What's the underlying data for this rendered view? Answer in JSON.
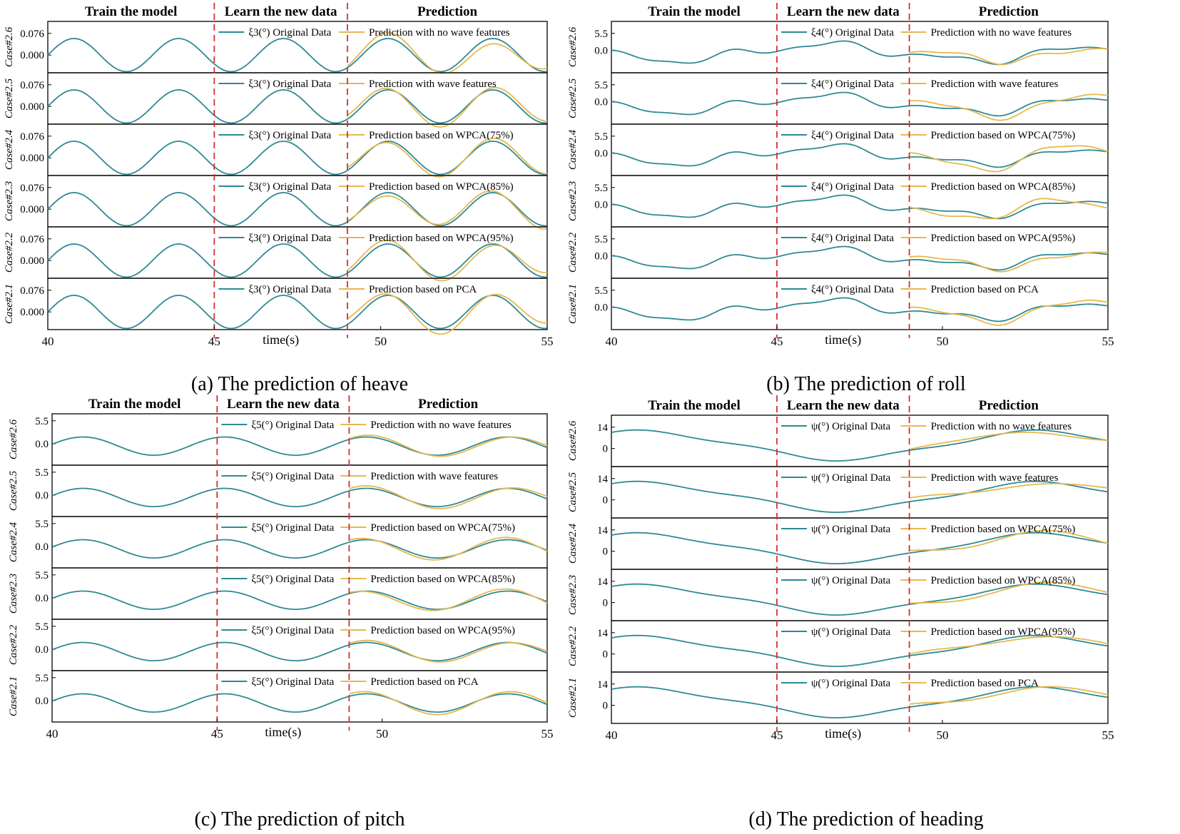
{
  "colors": {
    "original": "#2d8a94",
    "prediction": "#e6b84f",
    "divider": "#d62f2f",
    "frame": "#000000"
  },
  "labels": {
    "phases": [
      "Train the model",
      "Learn the new data",
      "Prediction"
    ],
    "xlabel": "time(s)",
    "xticks": [
      "40",
      "45",
      "50",
      "55"
    ]
  },
  "chart_data": [
    {
      "type": "line",
      "id": "heave",
      "caption": "(a) The prediction of heave",
      "original_label": "ξ3(°) Original Data",
      "x_range": [
        40,
        55
      ],
      "ytick_labels": [
        "0.076",
        "0.000"
      ],
      "ytick_values": [
        0.076,
        0.0
      ],
      "ylim": [
        -0.052,
        0.108
      ],
      "phase_boundaries": [
        45,
        49
      ],
      "motion": {
        "mean": 0.0,
        "terms": [
          [
            0.058,
            0.318,
            0.0
          ]
        ]
      },
      "cases": [
        {
          "case": "Case#2.6",
          "prediction_label": "Prediction with no wave features",
          "pred_err": [
            0.02,
            1.1,
            0.3
          ]
        },
        {
          "case": "Case#2.5",
          "prediction_label": "Prediction with wave features",
          "pred_err": [
            0.014,
            1.3,
            1.2
          ]
        },
        {
          "case": "Case#2.4",
          "prediction_label": "Prediction based on WPCA(75%)",
          "pred_err": [
            0.012,
            1.2,
            2.1
          ]
        },
        {
          "case": "Case#2.3",
          "prediction_label": "Prediction based on WPCA(85%)",
          "pred_err": [
            0.012,
            1.4,
            2.8
          ]
        },
        {
          "case": "Case#2.2",
          "prediction_label": "Prediction based on WPCA(95%)",
          "pred_err": [
            0.016,
            1.2,
            0.7
          ]
        },
        {
          "case": "Case#2.1",
          "prediction_label": "Prediction based on PCA",
          "pred_err": [
            0.02,
            1.1,
            1.6
          ]
        }
      ]
    },
    {
      "type": "line",
      "id": "roll",
      "caption": "(b) The prediction of roll",
      "original_label": "ξ4(°) Original Data",
      "x_range": [
        40,
        55
      ],
      "ytick_labels": [
        "5.5",
        "0.0"
      ],
      "ytick_values": [
        5.5,
        0.0
      ],
      "ylim": [
        -6.5,
        8.5
      ],
      "phase_boundaries": [
        45,
        49
      ],
      "motion": {
        "mean": -0.8,
        "terms": [
          [
            -2.5,
            0.11,
            0.3
          ],
          [
            1.2,
            0.31,
            0.8
          ],
          [
            0.6,
            0.55,
            1.6
          ]
        ]
      },
      "cases": [
        {
          "case": "Case#2.6",
          "prediction_label": "Prediction with no wave features",
          "pred_err": [
            1.4,
            1.0,
            0.4
          ]
        },
        {
          "case": "Case#2.5",
          "prediction_label": "Prediction with wave features",
          "pred_err": [
            1.6,
            1.1,
            1.3
          ]
        },
        {
          "case": "Case#2.4",
          "prediction_label": "Prediction based on WPCA(75%)",
          "pred_err": [
            1.8,
            1.2,
            2.2
          ]
        },
        {
          "case": "Case#2.3",
          "prediction_label": "Prediction based on WPCA(85%)",
          "pred_err": [
            1.7,
            1.3,
            2.9
          ]
        },
        {
          "case": "Case#2.2",
          "prediction_label": "Prediction based on WPCA(95%)",
          "pred_err": [
            1.2,
            1.0,
            0.9
          ]
        },
        {
          "case": "Case#2.1",
          "prediction_label": "Prediction based on PCA",
          "pred_err": [
            1.3,
            1.1,
            1.7
          ]
        }
      ]
    },
    {
      "type": "line",
      "id": "pitch",
      "caption": "(c) The prediction of pitch",
      "original_label": "ξ5(°) Original Data",
      "x_range": [
        40,
        55
      ],
      "ytick_labels": [
        "5.5",
        "0.0"
      ],
      "ytick_values": [
        5.5,
        0.0
      ],
      "ylim": [
        -4.5,
        6.5
      ],
      "phase_boundaries": [
        45,
        49
      ],
      "motion": {
        "mean": -0.6,
        "terms": [
          [
            2.2,
            0.233,
            0.2
          ]
        ]
      },
      "cases": [
        {
          "case": "Case#2.6",
          "prediction_label": "Prediction with no wave features",
          "pred_err": [
            0.5,
            1.2,
            0.4
          ]
        },
        {
          "case": "Case#2.5",
          "prediction_label": "Prediction with wave features",
          "pred_err": [
            0.6,
            1.1,
            1.1
          ]
        },
        {
          "case": "Case#2.4",
          "prediction_label": "Prediction based on WPCA(75%)",
          "pred_err": [
            0.6,
            1.3,
            2.0
          ]
        },
        {
          "case": "Case#2.3",
          "prediction_label": "Prediction based on WPCA(85%)",
          "pred_err": [
            0.6,
            1.2,
            2.7
          ]
        },
        {
          "case": "Case#2.2",
          "prediction_label": "Prediction based on WPCA(95%)",
          "pred_err": [
            0.5,
            1.1,
            0.8
          ]
        },
        {
          "case": "Case#2.1",
          "prediction_label": "Prediction based on PCA",
          "pred_err": [
            0.6,
            1.2,
            1.5
          ]
        }
      ]
    },
    {
      "type": "line",
      "id": "heading",
      "caption": "(d) The prediction of heading",
      "original_label": "ψ(°) Original Data",
      "x_range": [
        40,
        55
      ],
      "ytick_labels": [
        "14",
        "0"
      ],
      "ytick_values": [
        14,
        0
      ],
      "ylim": [
        -10,
        20
      ],
      "phase_boundaries": [
        45,
        49
      ],
      "motion": {
        "mean": 2.0,
        "terms": [
          [
            9.0,
            0.083,
            1.1
          ],
          [
            1.2,
            0.25,
            0.5
          ]
        ]
      },
      "cases": [
        {
          "case": "Case#2.6",
          "prediction_label": "Prediction with no wave features",
          "pred_err": [
            2.0,
            1.0,
            0.3
          ]
        },
        {
          "case": "Case#2.5",
          "prediction_label": "Prediction with wave features",
          "pred_err": [
            2.5,
            1.1,
            1.2
          ]
        },
        {
          "case": "Case#2.4",
          "prediction_label": "Prediction based on WPCA(75%)",
          "pred_err": [
            2.2,
            1.2,
            2.3
          ]
        },
        {
          "case": "Case#2.3",
          "prediction_label": "Prediction based on WPCA(85%)",
          "pred_err": [
            2.4,
            1.0,
            2.8
          ]
        },
        {
          "case": "Case#2.2",
          "prediction_label": "Prediction based on WPCA(95%)",
          "pred_err": [
            1.8,
            1.3,
            0.6
          ]
        },
        {
          "case": "Case#2.1",
          "prediction_label": "Prediction based on PCA",
          "pred_err": [
            2.1,
            1.1,
            1.9
          ]
        }
      ]
    }
  ]
}
